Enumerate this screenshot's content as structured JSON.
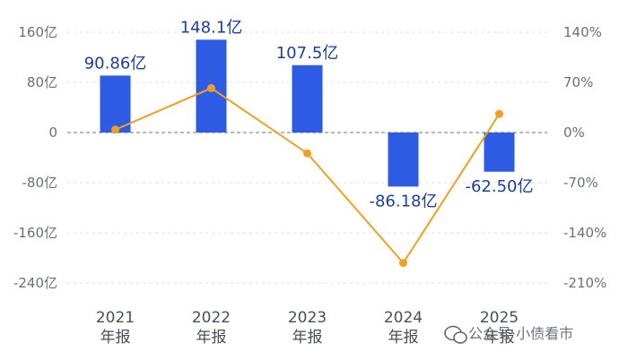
{
  "chart_data": {
    "type": "bar",
    "title": "",
    "categories": [
      "2021\n年报",
      "2022\n年报",
      "2023\n年报",
      "2024\n年报",
      "2025\n年报"
    ],
    "series": [
      {
        "type": "bar",
        "axis": "left",
        "values": [
          90.86,
          148.1,
          107.5,
          -86.18,
          -62.5
        ],
        "labels": [
          "90.86亿",
          "148.1亿",
          "107.5亿",
          "-86.18亿",
          "-62.50亿"
        ]
      },
      {
        "type": "line",
        "axis": "right",
        "values": [
          4,
          62,
          -29,
          -182,
          26
        ]
      }
    ],
    "y_left": {
      "ticks": [
        160,
        80,
        0,
        -80,
        -160,
        -240
      ],
      "tick_labels": [
        "160亿",
        "80亿",
        "0",
        "-80亿",
        "-160亿",
        "-240亿"
      ],
      "ylim": [
        -240,
        160
      ]
    },
    "y_right": {
      "ticks": [
        140,
        70,
        0,
        -70,
        -140,
        -210
      ],
      "tick_labels": [
        "140%",
        "70%",
        "0%",
        "-70%",
        "-140%",
        "-210%"
      ],
      "ylim": [
        -210,
        140
      ]
    },
    "grid": "horizontal dashed",
    "legend": "none",
    "colors": {
      "bar": "#2d5be3",
      "line": "#f0a020",
      "grid": "#d8dce3",
      "zero": "#8a8f99"
    }
  },
  "watermark": {
    "text": "公众号·小债看市"
  }
}
